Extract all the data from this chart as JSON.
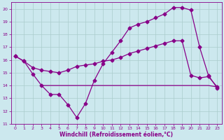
{
  "xlabel": "Windchill (Refroidissement éolien,°C)",
  "bg_color": "#cce8ee",
  "grid_color": "#aacccc",
  "line_color": "#880088",
  "ylim": [
    11,
    20.5
  ],
  "xlim": [
    -0.5,
    23.5
  ],
  "yticks": [
    11,
    12,
    13,
    14,
    15,
    16,
    17,
    18,
    19,
    20
  ],
  "xticks": [
    0,
    1,
    2,
    3,
    4,
    5,
    6,
    7,
    8,
    9,
    10,
    11,
    12,
    13,
    14,
    15,
    16,
    17,
    18,
    19,
    20,
    21,
    22,
    23
  ],
  "line1_x": [
    0,
    1,
    2,
    3,
    4,
    5,
    6,
    7,
    8,
    9,
    10,
    11,
    12,
    13,
    14,
    15,
    16,
    17,
    18,
    19,
    20,
    21,
    22,
    23
  ],
  "line1_y": [
    16.3,
    15.9,
    15.4,
    15.2,
    15.1,
    15.0,
    15.2,
    15.5,
    15.6,
    15.7,
    15.9,
    16.0,
    16.2,
    16.5,
    16.7,
    16.9,
    17.1,
    17.3,
    17.5,
    17.5,
    14.8,
    14.6,
    14.7,
    13.9
  ],
  "line2_x": [
    0,
    1,
    2,
    3,
    4,
    5,
    6,
    7,
    8,
    9,
    10,
    11,
    12,
    13,
    14,
    15,
    16,
    17,
    18,
    19,
    20,
    21,
    22,
    23
  ],
  "line2_y": [
    16.3,
    15.9,
    14.9,
    14.0,
    13.3,
    13.3,
    12.5,
    11.5,
    12.6,
    14.4,
    15.7,
    16.6,
    17.5,
    18.5,
    18.8,
    19.0,
    19.3,
    19.6,
    20.1,
    20.1,
    19.9,
    17.0,
    14.8,
    13.8
  ],
  "line3_x": [
    3,
    10,
    11,
    12,
    13,
    14,
    15,
    16,
    17,
    18,
    19,
    20,
    21,
    22,
    23
  ],
  "line3_y": [
    14.0,
    14.0,
    14.0,
    14.0,
    14.0,
    14.0,
    14.0,
    14.0,
    14.0,
    14.0,
    14.0,
    14.0,
    14.0,
    14.0,
    13.9
  ]
}
